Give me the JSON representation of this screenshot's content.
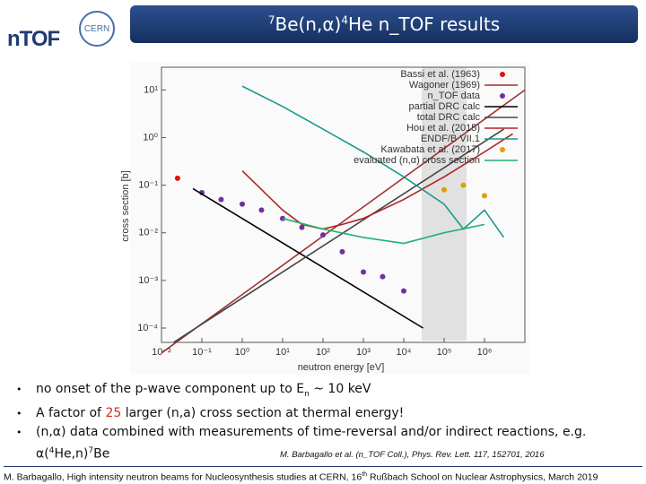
{
  "header": {
    "mass1": "7",
    "text1": "Be(n,α)",
    "mass2": "4",
    "text2": "He n_TOF results"
  },
  "logos": {
    "ntof": "nTOF",
    "cern": "CERN"
  },
  "chart_data": {
    "type": "line",
    "log_x": true,
    "log_y": true,
    "xlabel": "neutron energy [eV]",
    "ylabel": "cross section [b]",
    "xlim": [
      0.01,
      10000000
    ],
    "ylim": [
      5e-05,
      30
    ],
    "xticks": [
      {
        "value": 0.01,
        "label": "10⁻²"
      },
      {
        "value": 0.1,
        "label": "10⁻¹"
      },
      {
        "value": 1,
        "label": "10⁰"
      },
      {
        "value": 10,
        "label": "10¹"
      },
      {
        "value": 100,
        "label": "10²"
      },
      {
        "value": 1000,
        "label": "10³"
      },
      {
        "value": 10000,
        "label": "10⁴"
      },
      {
        "value": 100000,
        "label": "10⁵"
      },
      {
        "value": 1000000,
        "label": "10⁶"
      }
    ],
    "yticks": [
      {
        "value": 0.0001,
        "label": "10⁻⁴"
      },
      {
        "value": 0.001,
        "label": "10⁻³"
      },
      {
        "value": 0.01,
        "label": "10⁻²"
      },
      {
        "value": 0.1,
        "label": "10⁻¹"
      },
      {
        "value": 1,
        "label": "10⁰"
      },
      {
        "value": 10,
        "label": "10¹"
      }
    ],
    "legend": "upper right",
    "series": [
      {
        "name": "Bassi et al. (1963)",
        "color": "#e01010",
        "mode": "points",
        "x": [
          0.025
        ],
        "values": [
          0.14
        ]
      },
      {
        "name": "Wagoner (1969)",
        "color": "#a03030",
        "mode": "line",
        "x": [
          0.01,
          10000000
        ],
        "values": [
          3e-05,
          10
        ]
      },
      {
        "name": "n_TOF data",
        "color": "#7030a0",
        "mode": "points",
        "x": [
          0.1,
          0.3,
          1,
          3,
          10,
          30,
          100,
          300,
          1000,
          3000,
          10000
        ],
        "values": [
          0.07,
          0.05,
          0.04,
          0.03,
          0.02,
          0.013,
          0.009,
          0.004,
          0.0015,
          0.0012,
          0.0006
        ]
      },
      {
        "name": "partial DRC calc",
        "color": "#000000",
        "mode": "line",
        "x": [
          0.06,
          30000
        ],
        "values": [
          0.085,
          0.0001
        ]
      },
      {
        "name": "total DRC calc",
        "color": "#444444",
        "mode": "line",
        "x": [
          0.02,
          3000000
        ],
        "values": [
          5e-05,
          1.5
        ]
      },
      {
        "name": "Hou et al. (2015)",
        "color": "#b22222",
        "mode": "line",
        "x": [
          1,
          10,
          30,
          100,
          300,
          1000,
          10000,
          100000,
          1000000,
          5000000
        ],
        "values": [
          0.2,
          0.03,
          0.015,
          0.012,
          0.015,
          0.02,
          0.05,
          0.15,
          0.5,
          1.2
        ]
      },
      {
        "name": "ENDF/B VII.1",
        "color": "#1a9a8a",
        "mode": "line",
        "x": [
          1,
          10,
          100,
          1000,
          10000,
          100000,
          300000,
          1000000,
          3000000
        ],
        "values": [
          12,
          4.5,
          1.5,
          0.5,
          0.15,
          0.04,
          0.012,
          0.03,
          0.008
        ]
      },
      {
        "name": "Kawabata et al. (2017)",
        "color": "#e0a000",
        "mode": "points",
        "x": [
          100000,
          300000,
          1000000
        ],
        "values": [
          0.08,
          0.1,
          0.06
        ]
      },
      {
        "name": "evaluated (n,α) cross section",
        "color": "#20b070",
        "mode": "line",
        "x": [
          10,
          100,
          1000,
          10000,
          100000,
          1000000
        ],
        "values": [
          0.02,
          0.012,
          0.008,
          0.006,
          0.01,
          0.015
        ]
      }
    ]
  },
  "bullets": [
    {
      "pre": "no onset of the p-wave component up to E",
      "sub": "n",
      "post": " ~ 10 keV"
    },
    {
      "pre": "A factor of ",
      "highlight": "25",
      "post": " larger (n,a) cross section at thermal energy!"
    },
    {
      "pre": " (n,α) data combined with measurements of time-reversal and/or indirect reactions, e.g. α(",
      "sup1": "4",
      "mid": "He,n)",
      "sup2": "7",
      "post": "Be"
    }
  ],
  "citation": "M. Barbagallo et al. (n_TOF Coll.),  Phys. Rev. Lett. 117, 152701, 2016",
  "footer": {
    "pre": "M. Barbagallo, High intensity neutron beams for Nucleosynthesis studies at CERN, 16",
    "sup": "th",
    "post": " Rußbach School on Nuclear Astrophysics, March  2019"
  }
}
